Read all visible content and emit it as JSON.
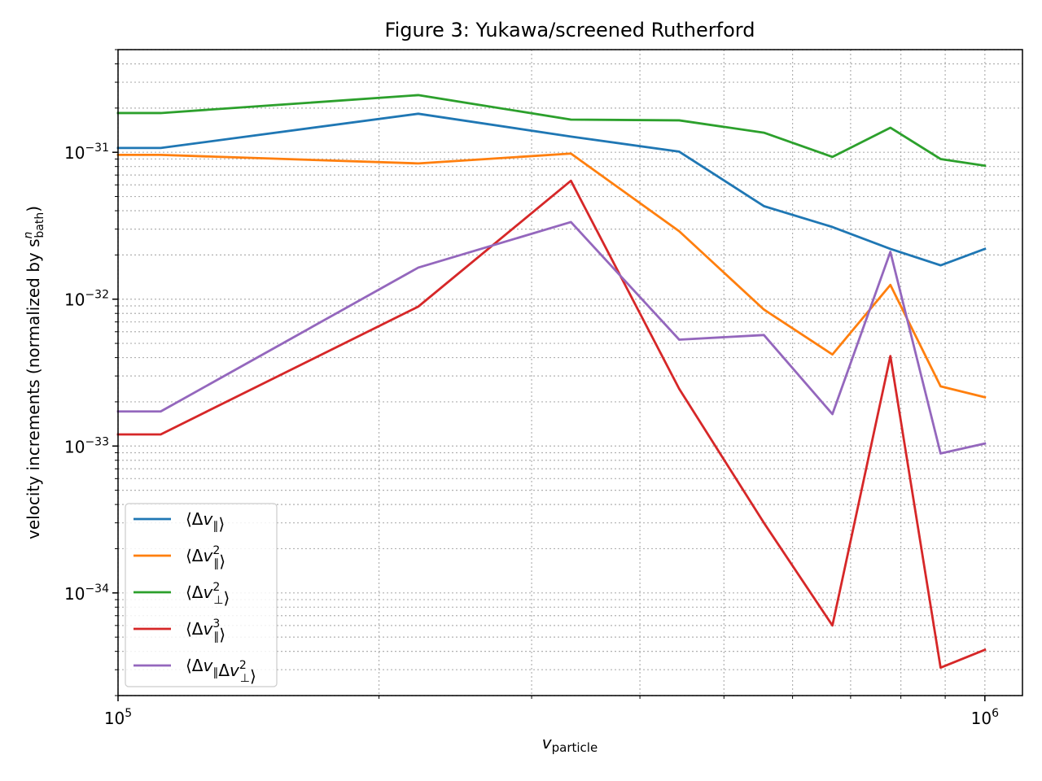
{
  "chart_data": {
    "type": "line",
    "title": "Figure 3: Yukawa/screened Rutherford",
    "xlabel": "v",
    "xlabel_sub": "particle",
    "ylabel": "velocity increments (normalized by s",
    "ylabel_sup": "n",
    "ylabel_sub": "bath",
    "ylabel_tail": ")",
    "xscale": "log",
    "yscale": "log",
    "xlim": [
      100000,
      1105000
    ],
    "ylim": [
      2e-35,
      5e-31
    ],
    "grid": "both",
    "legend_position": "lower-left",
    "x_tick_labels": [
      {
        "base": "10",
        "exp": "5",
        "value": 100000
      },
      {
        "base": "10",
        "exp": "6",
        "value": 1000000
      }
    ],
    "y_tick_labels": [
      {
        "base": "10",
        "exp": "−34",
        "value": 1e-34
      },
      {
        "base": "10",
        "exp": "−33",
        "value": 1e-33
      },
      {
        "base": "10",
        "exp": "−32",
        "value": 1e-32
      },
      {
        "base": "10",
        "exp": "−31",
        "value": 1e-31
      }
    ],
    "x": [
      100000,
      112000,
      222000,
      333000,
      444000,
      556000,
      667000,
      778000,
      889000,
      1000000
    ],
    "series": [
      {
        "name": "⟨Δv∥⟩",
        "legend": {
          "pre": "⟨Δ",
          "base": "v",
          "sub": "∥",
          "sup": "",
          "post": "⟩"
        },
        "color": "#1f77b4",
        "values": [
          1.07e-31,
          1.07e-31,
          1.83e-31,
          1.28e-31,
          1.01e-31,
          4.3e-32,
          3.1e-32,
          2.2e-32,
          1.7e-32,
          2.2e-32
        ]
      },
      {
        "name": "⟨Δv∥²⟩",
        "legend": {
          "pre": "⟨Δ",
          "base": "v",
          "sub": "∥",
          "sup": "2",
          "post": "⟩"
        },
        "color": "#ff7f0e",
        "values": [
          9.6e-32,
          9.6e-32,
          8.4e-32,
          9.8e-32,
          2.9e-32,
          8.5e-33,
          4.2e-33,
          1.25e-32,
          2.55e-33,
          2.15e-33
        ]
      },
      {
        "name": "⟨Δv⊥²⟩",
        "legend": {
          "pre": "⟨Δ",
          "base": "v",
          "sub": "⊥",
          "sup": "2",
          "post": "⟩"
        },
        "color": "#2ca02c",
        "values": [
          1.85e-31,
          1.85e-31,
          2.45e-31,
          1.67e-31,
          1.65e-31,
          1.36e-31,
          9.3e-32,
          1.47e-31,
          9e-32,
          8.1e-32
        ]
      },
      {
        "name": "⟨Δv∥³⟩",
        "legend": {
          "pre": "⟨Δ",
          "base": "v",
          "sub": "∥",
          "sup": "3",
          "post": "⟩"
        },
        "color": "#d62728",
        "values": [
          1.2e-33,
          1.2e-33,
          8.9e-33,
          6.4e-32,
          2.45e-33,
          3e-34,
          6e-35,
          4.1e-33,
          3.1e-35,
          4.1e-35
        ]
      },
      {
        "name": "⟨Δv∥Δv⊥²⟩",
        "legend": {
          "pre": "⟨Δ",
          "base": "v",
          "sub": "∥",
          "sup": "",
          "mid": "Δ",
          "base2": "v",
          "sub2": "⊥",
          "sup2": "2",
          "post": "⟩"
        },
        "color": "#9467bd",
        "values": [
          1.72e-33,
          1.72e-33,
          1.64e-32,
          3.35e-32,
          5.3e-33,
          5.7e-33,
          1.65e-33,
          2.1e-32,
          8.9e-34,
          1.04e-33
        ]
      }
    ]
  }
}
